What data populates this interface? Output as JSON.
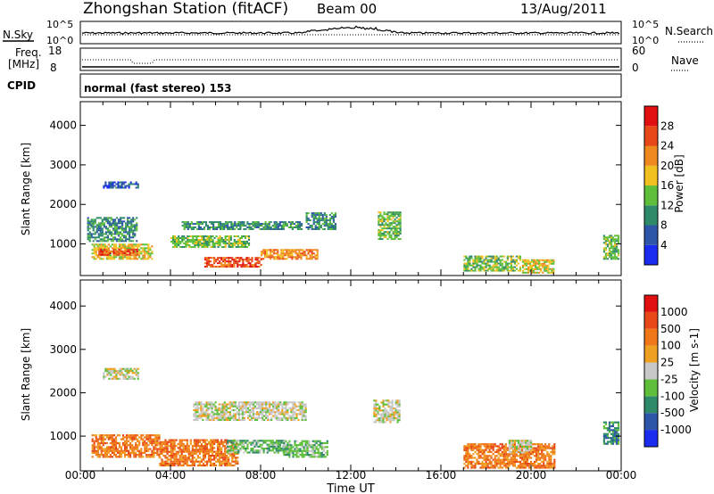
{
  "header": {
    "station": "Zhongshan Station (fitACF)",
    "beam": "Beam 00",
    "date": "13/Aug/2011"
  },
  "top_panels": {
    "nsky_label": "N.Sky",
    "nsearch_label": "N.Search",
    "nsky_ticks": [
      "10^5",
      "10^0"
    ],
    "nsearch_ticks": [
      "10^5",
      "10^0"
    ],
    "freq_label_1": "Freq.",
    "freq_label_2": "[MHz]",
    "freq_ticks": [
      "18",
      "8"
    ],
    "nave_label": "Nave",
    "nave_ticks": [
      "60",
      "0"
    ],
    "cpid_label": "CPID",
    "cpid_value": "normal (fast stereo) 153"
  },
  "x_axis": {
    "label": "Time UT",
    "ticks": [
      "00:00",
      "04:00",
      "08:00",
      "12:00",
      "16:00",
      "20:00",
      "00:00"
    ]
  },
  "chart_data": [
    {
      "type": "heatmap",
      "name": "power",
      "ylabel": "Slant Range [km]",
      "ylim": [
        200,
        4600
      ],
      "y_ticks": [
        1000,
        2000,
        3000,
        4000
      ],
      "colorbar": {
        "label": "Power [dB]",
        "ticks": [
          "4",
          "8",
          "12",
          "16",
          "20",
          "24",
          "28"
        ],
        "colors": [
          "#1a2cf0",
          "#2d55a8",
          "#2f8a6a",
          "#5fbf3a",
          "#f0c020",
          "#f08820",
          "#e84818",
          "#e01010"
        ]
      },
      "bands": [
        {
          "t0": 1.0,
          "t1": 2.6,
          "r0": 2400,
          "r1": 2550,
          "level": 1
        },
        {
          "t0": 0.3,
          "t1": 2.5,
          "r0": 1050,
          "r1": 1650,
          "level": 2
        },
        {
          "t0": 0.5,
          "t1": 3.2,
          "r0": 600,
          "r1": 1000,
          "level": 4
        },
        {
          "t0": 0.8,
          "t1": 2.5,
          "r0": 700,
          "r1": 850,
          "level": 6
        },
        {
          "t0": 4.5,
          "t1": 9.8,
          "r0": 1350,
          "r1": 1550,
          "level": 2
        },
        {
          "t0": 4.0,
          "t1": 7.5,
          "r0": 900,
          "r1": 1200,
          "level": 3
        },
        {
          "t0": 5.5,
          "t1": 8.0,
          "r0": 400,
          "r1": 650,
          "level": 6
        },
        {
          "t0": 8.0,
          "t1": 10.5,
          "r0": 600,
          "r1": 850,
          "level": 5
        },
        {
          "t0": 10.0,
          "t1": 11.3,
          "r0": 1350,
          "r1": 1800,
          "level": 2
        },
        {
          "t0": 13.2,
          "t1": 14.2,
          "r0": 1100,
          "r1": 1800,
          "level": 3
        },
        {
          "t0": 17.0,
          "t1": 19.5,
          "r0": 300,
          "r1": 700,
          "level": 3
        },
        {
          "t0": 19.6,
          "t1": 21.0,
          "r0": 250,
          "r1": 600,
          "level": 4
        },
        {
          "t0": 23.2,
          "t1": 23.9,
          "r0": 600,
          "r1": 1200,
          "level": 3
        }
      ]
    },
    {
      "type": "heatmap",
      "name": "velocity",
      "ylabel": "Slant Range [km]",
      "ylim": [
        200,
        4600
      ],
      "y_ticks": [
        1000,
        2000,
        3000,
        4000
      ],
      "colorbar": {
        "label": "Velocity [m s-1]",
        "ticks": [
          "1000",
          "500",
          "100",
          "25",
          "-25",
          "-100",
          "-500",
          "-1000"
        ],
        "colors": [
          "#1a2cf0",
          "#2d55a8",
          "#2f8a6a",
          "#5fbf3a",
          "#c8c8c8",
          "#f0a020",
          "#f07818",
          "#e84818",
          "#e01010"
        ]
      },
      "bands": [
        {
          "t0": 1.0,
          "t1": 2.6,
          "r0": 2300,
          "r1": 2550,
          "level": 4
        },
        {
          "t0": 0.5,
          "t1": 3.5,
          "r0": 500,
          "r1": 1000,
          "level": 6
        },
        {
          "t0": 3.5,
          "t1": 7.0,
          "r0": 300,
          "r1": 900,
          "level": 6
        },
        {
          "t0": 5.0,
          "t1": 10.0,
          "r0": 1350,
          "r1": 1800,
          "level": 4
        },
        {
          "t0": 6.5,
          "t1": 9.0,
          "r0": 600,
          "r1": 900,
          "level": 3
        },
        {
          "t0": 9.0,
          "t1": 11.0,
          "r0": 500,
          "r1": 900,
          "level": 3
        },
        {
          "t0": 13.0,
          "t1": 14.2,
          "r0": 1300,
          "r1": 1800,
          "level": 4
        },
        {
          "t0": 17.0,
          "t1": 21.0,
          "r0": 250,
          "r1": 800,
          "level": 6
        },
        {
          "t0": 19.0,
          "t1": 20.0,
          "r0": 600,
          "r1": 900,
          "level": 4
        },
        {
          "t0": 23.2,
          "t1": 23.9,
          "r0": 800,
          "r1": 1300,
          "level": 2
        }
      ]
    }
  ]
}
